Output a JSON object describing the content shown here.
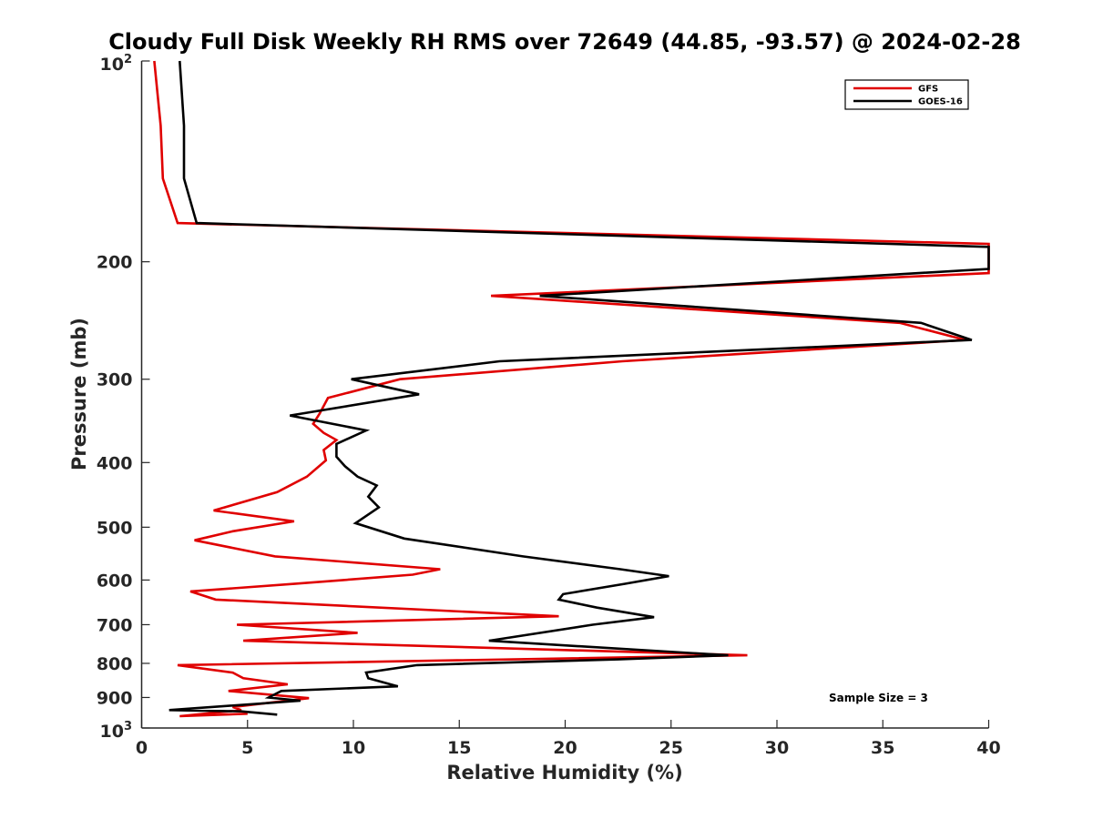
{
  "chart_data": {
    "type": "line",
    "title": "Cloudy Full Disk Weekly RH RMS over 72649 (44.85, -93.57) @ 2024-02-28",
    "xlabel": "Relative Humidity (%)",
    "ylabel": "Pressure (mb)",
    "xlim": [
      0,
      40
    ],
    "ylim": [
      100,
      1000
    ],
    "y_scale": "log",
    "y_reversed": true,
    "x_ticks": [
      0,
      5,
      10,
      15,
      20,
      25,
      30,
      35,
      40
    ],
    "y_ticks": [
      {
        "value": 200,
        "label": "200"
      },
      {
        "value": 300,
        "label": "300"
      },
      {
        "value": 400,
        "label": "400"
      },
      {
        "value": 500,
        "label": "500"
      },
      {
        "value": 600,
        "label": "600"
      },
      {
        "value": 700,
        "label": "700"
      },
      {
        "value": 800,
        "label": "800"
      },
      {
        "value": 900,
        "label": "900"
      }
    ],
    "y_end_labels": {
      "top_base": "10",
      "top_exp": "2",
      "bottom_base": "10",
      "bottom_exp": "3"
    },
    "grid": false,
    "legend_position": "top-right",
    "annotation": "Sample Size = 3",
    "series": [
      {
        "name": "GFS",
        "color": "#e00000",
        "points": [
          [
            0.6,
            100
          ],
          [
            0.9,
            125
          ],
          [
            1.0,
            150
          ],
          [
            1.7,
            175
          ],
          [
            40,
            188
          ],
          [
            40,
            208
          ],
          [
            16.5,
            225
          ],
          [
            35.8,
            247
          ],
          [
            38.9,
            262
          ],
          [
            22.7,
            282
          ],
          [
            12.2,
            300
          ],
          [
            8.8,
            320
          ],
          [
            8.4,
            338
          ],
          [
            8.1,
            350
          ],
          [
            8.6,
            361
          ],
          [
            9.2,
            370
          ],
          [
            8.6,
            383
          ],
          [
            8.7,
            397
          ],
          [
            7.8,
            420
          ],
          [
            6.4,
            443
          ],
          [
            3.4,
            472
          ],
          [
            7.2,
            490
          ],
          [
            4.3,
            507
          ],
          [
            2.5,
            523
          ],
          [
            6.3,
            553
          ],
          [
            14.1,
            578
          ],
          [
            12.8,
            589
          ],
          [
            7.2,
            608
          ],
          [
            2.3,
            624
          ],
          [
            3.5,
            642
          ],
          [
            19.7,
            680
          ],
          [
            4.5,
            700
          ],
          [
            10.2,
            720
          ],
          [
            4.8,
            740
          ],
          [
            28.6,
            778
          ],
          [
            1.7,
            805
          ],
          [
            4.3,
            826
          ],
          [
            4.8,
            842
          ],
          [
            6.9,
            860
          ],
          [
            4.1,
            880
          ],
          [
            7.9,
            902
          ],
          [
            4.3,
            930
          ],
          [
            4.7,
            940
          ],
          [
            1.8,
            960
          ],
          [
            5.0,
            952
          ]
        ]
      },
      {
        "name": "GOES-16",
        "color": "#000000",
        "points": [
          [
            1.8,
            100
          ],
          [
            2.0,
            125
          ],
          [
            2.0,
            150
          ],
          [
            2.6,
            175
          ],
          [
            40,
            190
          ],
          [
            40,
            205
          ],
          [
            18.8,
            225
          ],
          [
            36.8,
            247
          ],
          [
            39.2,
            262
          ],
          [
            16.9,
            282
          ],
          [
            9.9,
            300
          ],
          [
            13.1,
            316
          ],
          [
            7.0,
            340
          ],
          [
            10.6,
            358
          ],
          [
            9.2,
            375
          ],
          [
            9.2,
            392
          ],
          [
            9.6,
            405
          ],
          [
            10.2,
            420
          ],
          [
            11.1,
            433
          ],
          [
            10.7,
            450
          ],
          [
            11.2,
            467
          ],
          [
            10.1,
            493
          ],
          [
            12.4,
            520
          ],
          [
            18.0,
            553
          ],
          [
            22.6,
            578
          ],
          [
            24.9,
            592
          ],
          [
            22.8,
            608
          ],
          [
            19.9,
            630
          ],
          [
            19.7,
            642
          ],
          [
            21.5,
            660
          ],
          [
            24.2,
            682
          ],
          [
            21.3,
            700
          ],
          [
            16.4,
            740
          ],
          [
            27.7,
            778
          ],
          [
            22.5,
            789
          ],
          [
            13.0,
            805
          ],
          [
            10.6,
            826
          ],
          [
            10.7,
            842
          ],
          [
            12.1,
            866
          ],
          [
            6.6,
            880
          ],
          [
            6.0,
            900
          ],
          [
            7.5,
            910
          ],
          [
            1.3,
            940
          ],
          [
            4.7,
            944
          ],
          [
            6.4,
            955
          ]
        ]
      }
    ]
  }
}
